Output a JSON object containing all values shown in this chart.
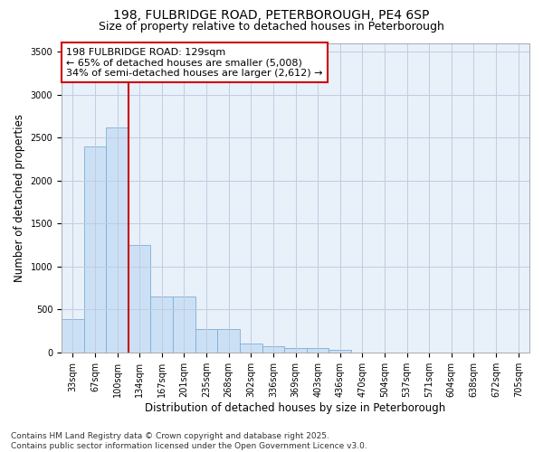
{
  "title1": "198, FULBRIDGE ROAD, PETERBOROUGH, PE4 6SP",
  "title2": "Size of property relative to detached houses in Peterborough",
  "xlabel": "Distribution of detached houses by size in Peterborough",
  "ylabel": "Number of detached properties",
  "categories": [
    "33sqm",
    "67sqm",
    "100sqm",
    "134sqm",
    "167sqm",
    "201sqm",
    "235sqm",
    "268sqm",
    "302sqm",
    "336sqm",
    "369sqm",
    "403sqm",
    "436sqm",
    "470sqm",
    "504sqm",
    "537sqm",
    "571sqm",
    "604sqm",
    "638sqm",
    "672sqm",
    "705sqm"
  ],
  "values": [
    390,
    2400,
    2620,
    1250,
    650,
    650,
    270,
    270,
    100,
    70,
    50,
    50,
    30,
    0,
    0,
    0,
    0,
    0,
    0,
    0,
    0
  ],
  "bar_color": "#cce0f5",
  "bar_edge_color": "#7bafd4",
  "vline_color": "#cc0000",
  "annotation_line1": "198 FULBRIDGE ROAD: 129sqm",
  "annotation_line2": "← 65% of detached houses are smaller (5,008)",
  "annotation_line3": "34% of semi-detached houses are larger (2,612) →",
  "annotation_box_color": "#cc0000",
  "ylim": [
    0,
    3600
  ],
  "yticks": [
    0,
    500,
    1000,
    1500,
    2000,
    2500,
    3000,
    3500
  ],
  "footer1": "Contains HM Land Registry data © Crown copyright and database right 2025.",
  "footer2": "Contains public sector information licensed under the Open Government Licence v3.0.",
  "bg_color": "#ffffff",
  "plot_bg_color": "#e8f0fa",
  "grid_color": "#c0cce0",
  "title_fontsize": 10,
  "subtitle_fontsize": 9,
  "axis_label_fontsize": 8.5,
  "tick_fontsize": 7,
  "annotation_fontsize": 8,
  "footer_fontsize": 6.5
}
